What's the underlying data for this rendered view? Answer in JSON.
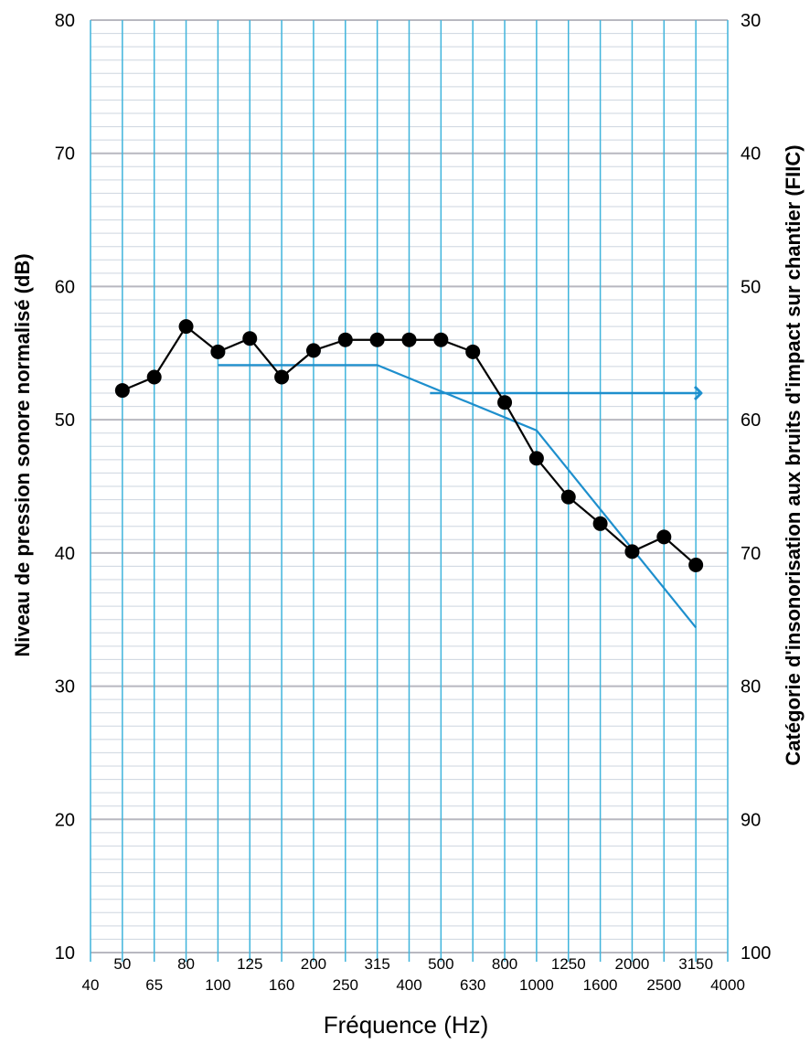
{
  "chart_data": {
    "type": "line",
    "xlabel": "Fréquence (Hz)",
    "ylabel": "Niveau de pression sonore normalisé (dB)",
    "y2label": "Catégorie d'insonorisation aux bruits d'impact sur chantier (FIIC)",
    "ylim": [
      10,
      80
    ],
    "y2lim": [
      30,
      100
    ],
    "y_ticks": [
      "10",
      "20",
      "30",
      "40",
      "50",
      "60",
      "70",
      "80"
    ],
    "y2_ticks": [
      "100",
      "90",
      "80",
      "70",
      "60",
      "50",
      "40",
      "30"
    ],
    "x_ticks_upper": [
      "50",
      "80",
      "125",
      "200",
      "315",
      "500",
      "800",
      "1250",
      "2000",
      "3150"
    ],
    "x_ticks_lower": [
      "40",
      "65",
      "100",
      "160",
      "250",
      "400",
      "630",
      "1000",
      "1600",
      "2500",
      "4000"
    ],
    "x_bands": [
      "40",
      "50",
      "65",
      "80",
      "100",
      "125",
      "160",
      "200",
      "250",
      "315",
      "400",
      "500",
      "630",
      "800",
      "1000",
      "1250",
      "1600",
      "2000",
      "2500",
      "3150",
      "4000"
    ],
    "grid": true,
    "series": [
      {
        "x": [
          "50",
          "65",
          "80",
          "100",
          "125",
          "160",
          "200",
          "250",
          "315",
          "400",
          "500",
          "630",
          "800",
          "1000",
          "1250",
          "1600",
          "2000",
          "2500",
          "3150"
        ],
        "values": [
          52.2,
          53.2,
          57.0,
          55.1,
          56.1,
          53.2,
          55.2,
          56.0,
          56.0,
          56.0,
          56.0,
          55.1,
          51.3,
          47.1,
          44.2,
          42.2,
          40.1,
          41.2,
          39.1
        ],
        "color": "#000000",
        "marker": "circle"
      },
      {
        "x": [
          "100",
          "315",
          "1000",
          "3150"
        ],
        "values": [
          54.1,
          54.1,
          49.2,
          34.4
        ],
        "color": "#1e8fcd",
        "marker": "none"
      }
    ],
    "rating_arrow": {
      "from_x": "500",
      "value_right_axis": 58
    },
    "colors": {
      "major_grid": "#b8b8c0",
      "minor_grid": "#cdd5df",
      "vertical_grid": "#3fb4dc",
      "reference": "#1e8fcd",
      "measured": "#000000"
    }
  }
}
